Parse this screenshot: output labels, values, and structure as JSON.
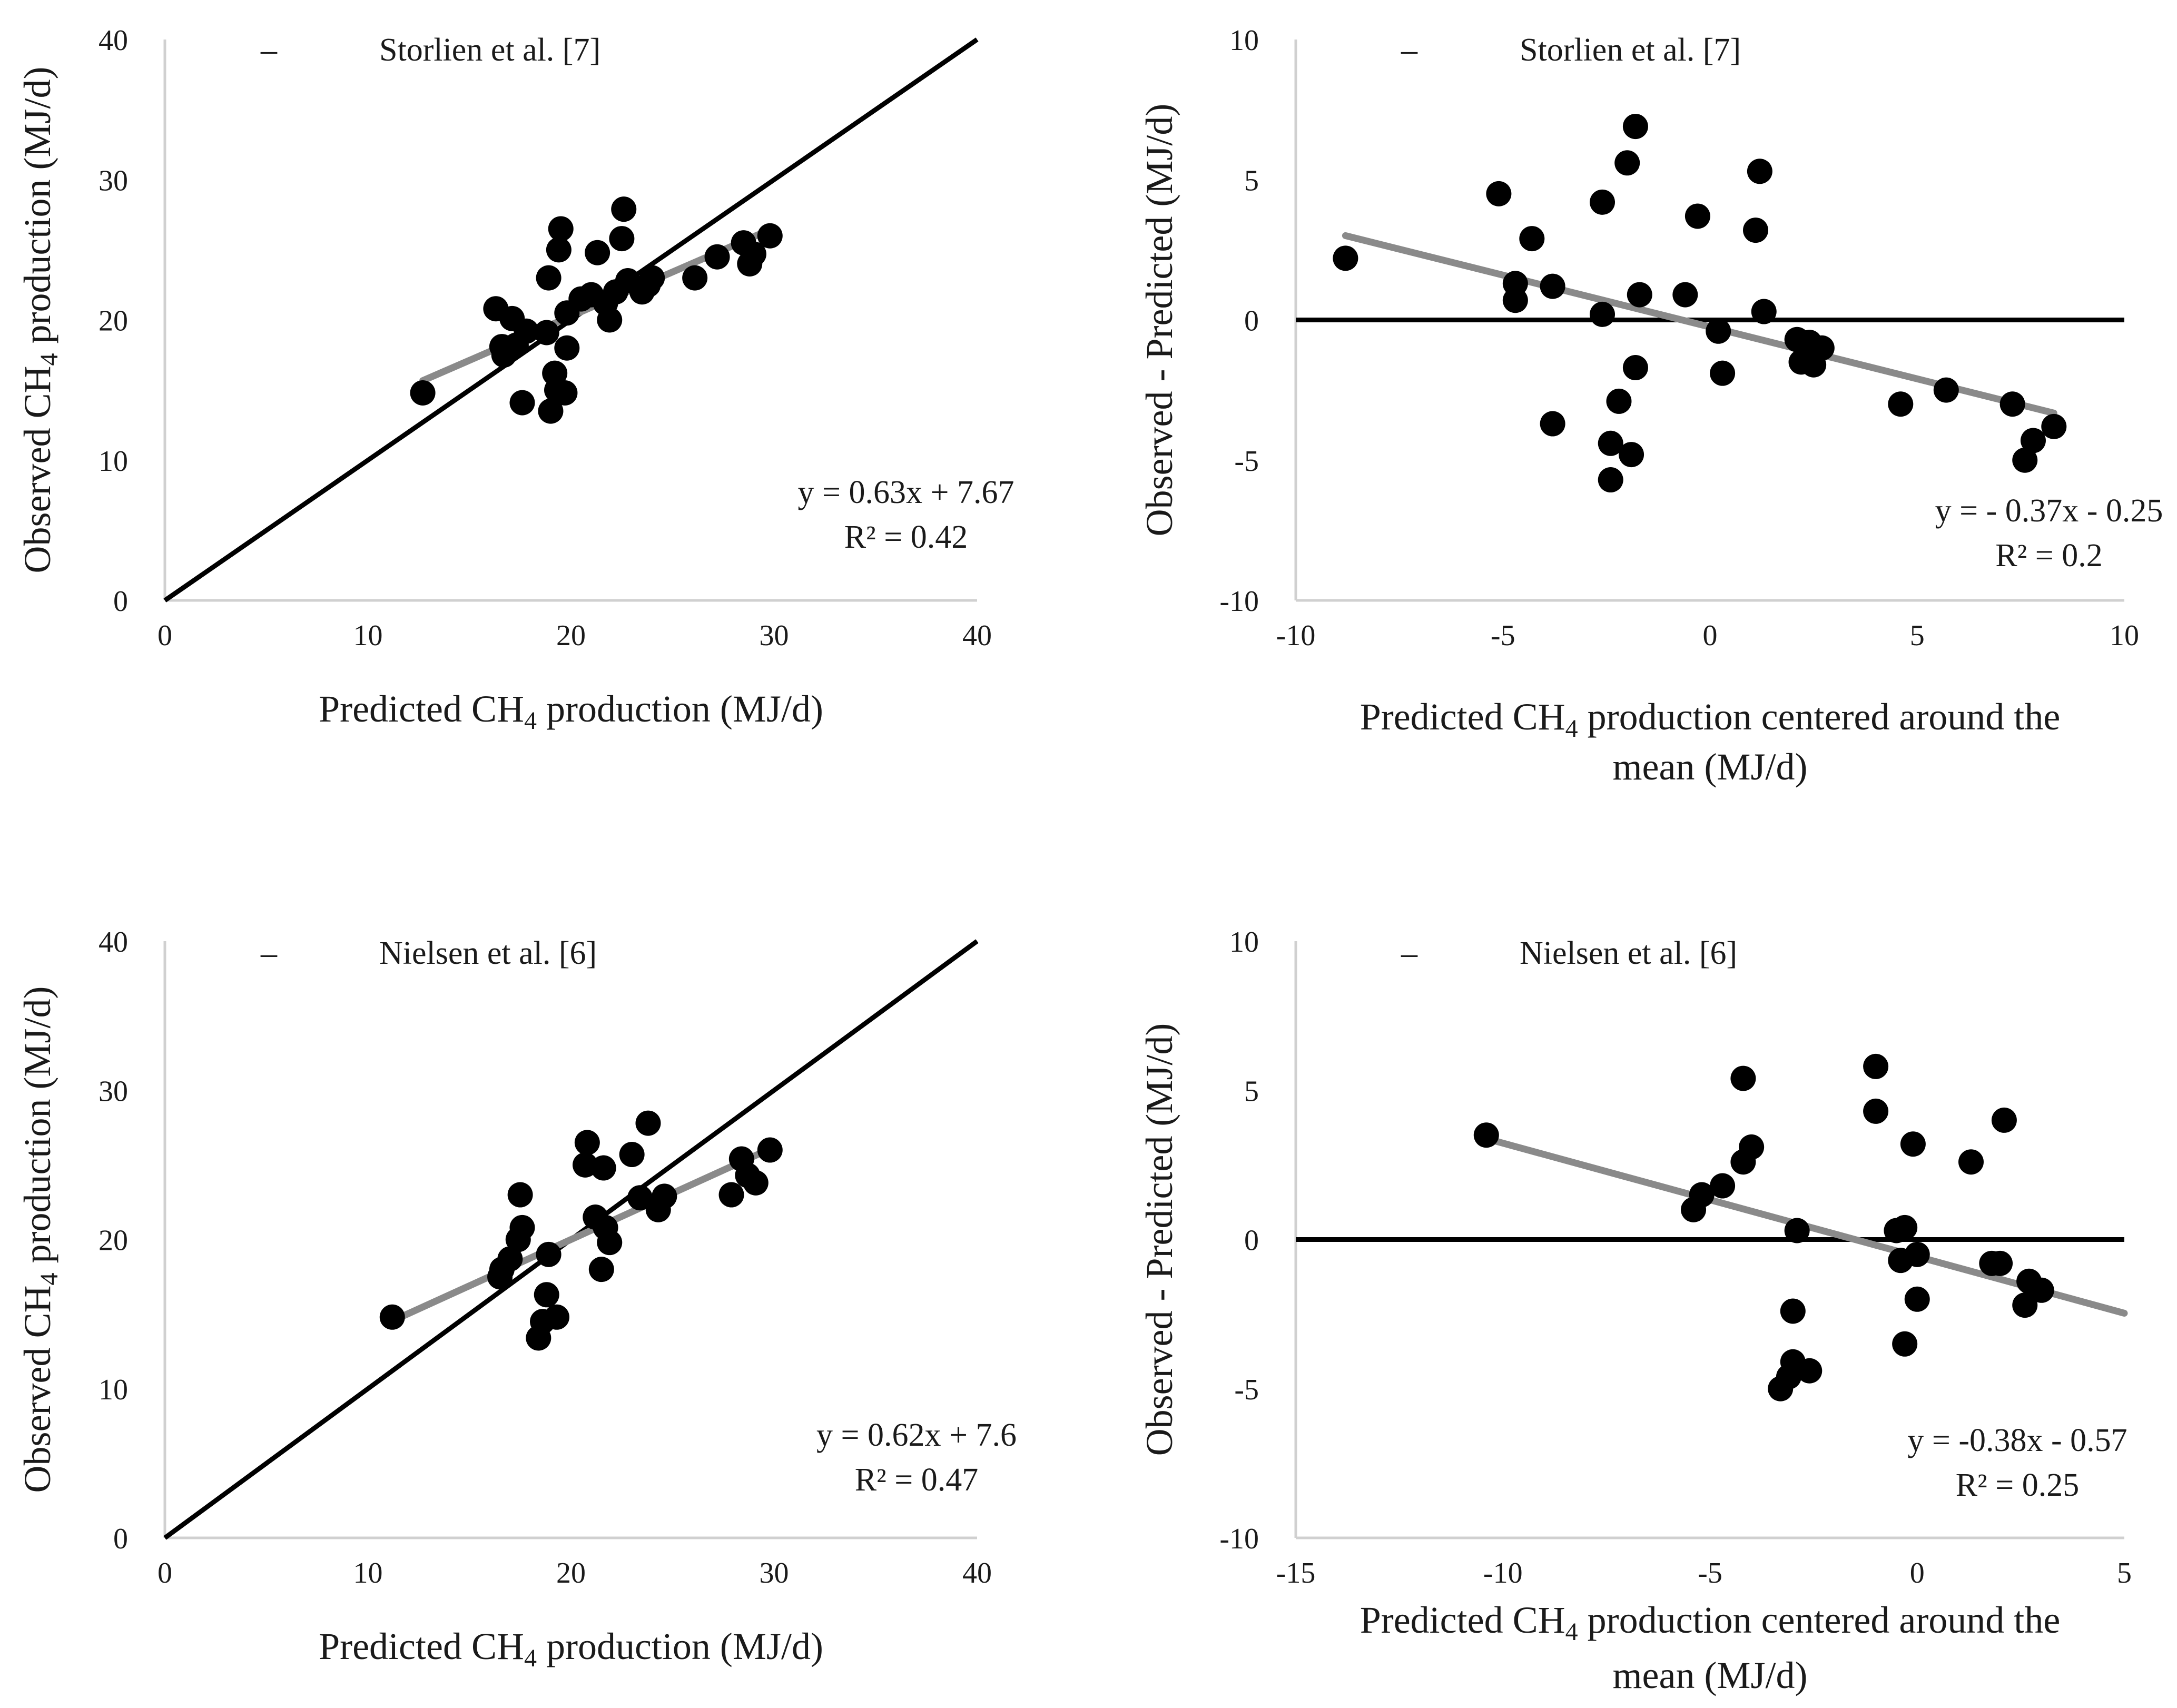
{
  "chart_data": [
    {
      "type": "scatter",
      "panel": "top-left",
      "legend": "Storlien et al. [7]",
      "legend_marker": "–",
      "xlabel": {
        "pre": "Predicted CH",
        "sub": "4",
        "post": " production (MJ/d)",
        "line2": ""
      },
      "ylabel": {
        "pre": "Observed CH",
        "sub": "4",
        "post": " production (MJ/d)"
      },
      "xlim": [
        0,
        40
      ],
      "ylim": [
        0,
        40
      ],
      "xticks": [
        0,
        10,
        20,
        30,
        40
      ],
      "yticks": [
        0,
        10,
        20,
        30,
        40
      ],
      "reference_line": {
        "type": "identity",
        "from": [
          0,
          0
        ],
        "to": [
          40,
          40
        ]
      },
      "trendline": {
        "slope": 0.63,
        "intercept": 7.67,
        "x_range": [
          12.7,
          29.9
        ]
      },
      "equation": "y = 0.63x + 7.67",
      "r2": "R² = 0.42",
      "points": [
        [
          12.7,
          14.8
        ],
        [
          16.3,
          20.8
        ],
        [
          16.6,
          18.1
        ],
        [
          16.7,
          17.5
        ],
        [
          17.1,
          20.1
        ],
        [
          17.3,
          18.2
        ],
        [
          17.6,
          14.1
        ],
        [
          17.8,
          19.2
        ],
        [
          18.8,
          19.1
        ],
        [
          18.9,
          23.0
        ],
        [
          19.0,
          13.5
        ],
        [
          19.2,
          16.2
        ],
        [
          19.3,
          15.0
        ],
        [
          19.4,
          25.0
        ],
        [
          19.5,
          26.5
        ],
        [
          19.7,
          14.8
        ],
        [
          19.8,
          18.0
        ],
        [
          19.8,
          20.5
        ],
        [
          20.5,
          21.5
        ],
        [
          21.0,
          21.8
        ],
        [
          21.3,
          24.8
        ],
        [
          21.7,
          21.2
        ],
        [
          21.9,
          20.0
        ],
        [
          22.2,
          22.0
        ],
        [
          22.5,
          25.8
        ],
        [
          22.6,
          27.9
        ],
        [
          22.8,
          22.8
        ],
        [
          23.5,
          22.0
        ],
        [
          23.8,
          22.5
        ],
        [
          24.0,
          23.0
        ],
        [
          26.1,
          23.0
        ],
        [
          27.2,
          24.5
        ],
        [
          28.5,
          25.5
        ],
        [
          28.8,
          24.0
        ],
        [
          29.0,
          24.7
        ],
        [
          29.8,
          26.0
        ]
      ]
    },
    {
      "type": "scatter",
      "panel": "top-right",
      "legend": "Storlien et al. [7]",
      "legend_marker": "–",
      "xlabel": {
        "pre": "Predicted CH",
        "sub": "4",
        "post": " production centered around the",
        "line2": "mean (MJ/d)"
      },
      "ylabel": {
        "pre": "Observed - Predicted (MJ/d)",
        "sub": "",
        "post": ""
      },
      "xlim": [
        -10,
        10
      ],
      "ylim": [
        -10,
        10
      ],
      "xticks": [
        -10,
        -5,
        0,
        5,
        10
      ],
      "yticks": [
        -10,
        -5,
        0,
        5,
        10
      ],
      "reference_line": {
        "type": "horizontal",
        "from": [
          -10,
          0
        ],
        "to": [
          10,
          0
        ]
      },
      "trendline": {
        "slope": -0.37,
        "intercept": -0.25,
        "x_range": [
          -8.8,
          8.3
        ]
      },
      "equation": "y = - 0.37x - 0.25",
      "r2": "R² = 0.2",
      "points": [
        [
          -8.8,
          2.2
        ],
        [
          -5.1,
          4.5
        ],
        [
          -4.7,
          1.3
        ],
        [
          -4.7,
          0.7
        ],
        [
          -4.3,
          2.9
        ],
        [
          -3.8,
          1.2
        ],
        [
          -3.8,
          -3.7
        ],
        [
          -2.6,
          0.2
        ],
        [
          -2.6,
          4.2
        ],
        [
          -2.4,
          -4.4
        ],
        [
          -2.4,
          -5.7
        ],
        [
          -2.2,
          -2.9
        ],
        [
          -2.0,
          5.6
        ],
        [
          -1.9,
          -4.8
        ],
        [
          -1.8,
          6.9
        ],
        [
          -1.8,
          -1.7
        ],
        [
          -1.7,
          0.9
        ],
        [
          -0.6,
          0.9
        ],
        [
          -0.3,
          3.7
        ],
        [
          0.2,
          -0.4
        ],
        [
          0.3,
          -1.9
        ],
        [
          1.1,
          3.2
        ],
        [
          1.2,
          5.3
        ],
        [
          1.3,
          0.3
        ],
        [
          2.1,
          -0.7
        ],
        [
          2.2,
          -1.5
        ],
        [
          2.4,
          -0.8
        ],
        [
          2.5,
          -1.6
        ],
        [
          2.7,
          -1.0
        ],
        [
          4.6,
          -3.0
        ],
        [
          5.7,
          -2.5
        ],
        [
          7.3,
          -3.0
        ],
        [
          7.6,
          -5.0
        ],
        [
          7.8,
          -4.3
        ],
        [
          8.3,
          -3.8
        ]
      ]
    },
    {
      "type": "scatter",
      "panel": "bottom-left",
      "legend": "Nielsen et al. [6]",
      "legend_marker": "–",
      "xlabel": {
        "pre": "Predicted CH",
        "sub": "4",
        "post": " production (MJ/d)",
        "line2": ""
      },
      "ylabel": {
        "pre": "Observed CH",
        "sub": "4",
        "post": " production (MJ/d)"
      },
      "xlim": [
        0,
        40
      ],
      "ylim": [
        0,
        40
      ],
      "xticks": [
        0,
        10,
        20,
        30,
        40
      ],
      "yticks": [
        0,
        10,
        20,
        30,
        40
      ],
      "reference_line": {
        "type": "identity",
        "from": [
          0,
          0
        ],
        "to": [
          40,
          40
        ]
      },
      "trendline": {
        "slope": 0.62,
        "intercept": 7.6,
        "x_range": [
          11.2,
          29.9
        ]
      },
      "equation": "y = 0.62x + 7.6",
      "r2": "R² = 0.47",
      "points": [
        [
          11.2,
          14.8
        ],
        [
          16.5,
          17.5
        ],
        [
          16.6,
          18.0
        ],
        [
          17.0,
          18.7
        ],
        [
          17.4,
          20.0
        ],
        [
          17.6,
          20.8
        ],
        [
          17.5,
          23.0
        ],
        [
          18.4,
          13.4
        ],
        [
          18.6,
          14.5
        ],
        [
          18.8,
          16.3
        ],
        [
          18.9,
          19.0
        ],
        [
          19.3,
          14.8
        ],
        [
          20.7,
          25.0
        ],
        [
          20.8,
          26.5
        ],
        [
          21.2,
          21.5
        ],
        [
          21.5,
          18.0
        ],
        [
          21.6,
          24.8
        ],
        [
          21.7,
          20.8
        ],
        [
          21.9,
          19.8
        ],
        [
          23.0,
          25.7
        ],
        [
          23.4,
          22.8
        ],
        [
          23.8,
          27.8
        ],
        [
          24.3,
          22.0
        ],
        [
          24.6,
          22.9
        ],
        [
          27.9,
          23.0
        ],
        [
          28.4,
          25.4
        ],
        [
          28.7,
          24.3
        ],
        [
          29.1,
          23.8
        ],
        [
          29.8,
          26.0
        ]
      ]
    },
    {
      "type": "scatter",
      "panel": "bottom-right",
      "legend": "Nielsen et al. [6]",
      "legend_marker": "–",
      "xlabel": {
        "pre": "Predicted CH",
        "sub": "4",
        "post": " production centered around the",
        "line2": "mean (MJ/d)"
      },
      "ylabel": {
        "pre": "Observed - Predicted (MJ/d)",
        "sub": "",
        "post": ""
      },
      "xlim": [
        -15,
        5
      ],
      "ylim": [
        -10,
        10
      ],
      "xticks": [
        -15,
        -10,
        -5,
        0,
        5
      ],
      "yticks": [
        -10,
        -5,
        0,
        5,
        10
      ],
      "reference_line": {
        "type": "horizontal",
        "from": [
          -15,
          0
        ],
        "to": [
          5,
          0
        ]
      },
      "trendline": {
        "slope": -0.38,
        "intercept": -0.57,
        "x_range": [
          -10.4,
          5.0
        ]
      },
      "equation": "y = -0.38x - 0.57",
      "r2": "R² = 0.25",
      "points": [
        [
          -10.4,
          3.5
        ],
        [
          -5.4,
          1.0
        ],
        [
          -5.2,
          1.5
        ],
        [
          -4.7,
          1.8
        ],
        [
          -4.2,
          2.6
        ],
        [
          -4.2,
          5.4
        ],
        [
          -4.0,
          3.1
        ],
        [
          -3.3,
          -5.0
        ],
        [
          -3.1,
          -4.6
        ],
        [
          -3.0,
          -2.4
        ],
        [
          -3.0,
          -4.1
        ],
        [
          -2.9,
          0.3
        ],
        [
          -2.6,
          -4.4
        ],
        [
          -1.0,
          4.3
        ],
        [
          -1.0,
          5.8
        ],
        [
          -0.5,
          0.3
        ],
        [
          -0.4,
          -0.7
        ],
        [
          -0.3,
          0.4
        ],
        [
          -0.3,
          -3.5
        ],
        [
          -0.1,
          3.2
        ],
        [
          0.0,
          -0.5
        ],
        [
          0.0,
          -2.0
        ],
        [
          1.3,
          2.6
        ],
        [
          1.8,
          -0.8
        ],
        [
          2.0,
          -0.8
        ],
        [
          2.1,
          4.0
        ],
        [
          2.6,
          -2.2
        ],
        [
          2.7,
          -1.4
        ],
        [
          3.0,
          -1.7
        ]
      ]
    }
  ]
}
